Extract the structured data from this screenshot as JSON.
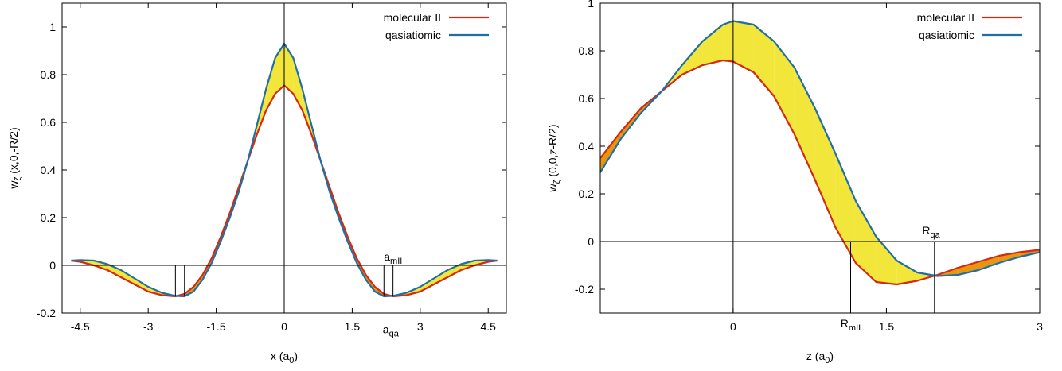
{
  "colors": {
    "molecular": "#d42a12",
    "quasiatomic": "#1f6fa6",
    "fill_yellow": "#f2e63b",
    "fill_orange": "#e8960f"
  },
  "chart_data": [
    {
      "type": "line",
      "xlabel": {
        "base": "x (a",
        "sub": "0",
        "end": ")"
      },
      "ylabel": {
        "base": "w",
        "sub": "ζ",
        "end": " (x,0,-R/2)"
      },
      "xlim": [
        -4.9,
        4.9
      ],
      "ylim": [
        -0.2,
        1.1
      ],
      "xticks": [
        -4.5,
        -3,
        -1.5,
        0,
        1.5,
        3,
        4.5
      ],
      "xtick_labels": [
        "-4.5",
        "-3",
        "-1.5",
        "0",
        "1.5",
        "3",
        "4.5"
      ],
      "yticks": [
        -0.2,
        0,
        0.2,
        0.4,
        0.6,
        0.8,
        1
      ],
      "ytick_labels": [
        "-0.2",
        "0",
        "0.2",
        "0.4",
        "0.6",
        "0.8",
        "1"
      ],
      "legend_position": "top-right",
      "series": [
        {
          "name": "molecular II",
          "key": "molecular",
          "x": [
            -4.7,
            -4.5,
            -4.2,
            -3.9,
            -3.6,
            -3.3,
            -3.0,
            -2.7,
            -2.4,
            -2.2,
            -2.0,
            -1.8,
            -1.6,
            -1.4,
            -1.2,
            -1.0,
            -0.8,
            -0.6,
            -0.4,
            -0.2,
            0,
            0.2,
            0.4,
            0.6,
            0.8,
            1.0,
            1.2,
            1.4,
            1.6,
            1.8,
            2.0,
            2.2,
            2.4,
            2.7,
            3.0,
            3.3,
            3.6,
            3.9,
            4.2,
            4.5,
            4.7
          ],
          "y": [
            0.02,
            0.015,
            0.0,
            -0.02,
            -0.05,
            -0.08,
            -0.11,
            -0.125,
            -0.13,
            -0.12,
            -0.09,
            -0.04,
            0.03,
            0.12,
            0.22,
            0.33,
            0.44,
            0.55,
            0.65,
            0.72,
            0.755,
            0.72,
            0.65,
            0.55,
            0.44,
            0.33,
            0.22,
            0.12,
            0.03,
            -0.04,
            -0.09,
            -0.12,
            -0.13,
            -0.125,
            -0.11,
            -0.08,
            -0.05,
            -0.02,
            0.0,
            0.015,
            0.02
          ]
        },
        {
          "name": "qasiatiomic",
          "key": "quasiatomic",
          "x": [
            -4.7,
            -4.5,
            -4.2,
            -3.9,
            -3.6,
            -3.3,
            -3.0,
            -2.7,
            -2.4,
            -2.2,
            -2.0,
            -1.8,
            -1.6,
            -1.4,
            -1.2,
            -1.0,
            -0.8,
            -0.6,
            -0.4,
            -0.2,
            0,
            0.2,
            0.4,
            0.6,
            0.8,
            1.0,
            1.2,
            1.4,
            1.6,
            1.8,
            2.0,
            2.2,
            2.4,
            2.7,
            3.0,
            3.3,
            3.6,
            3.9,
            4.2,
            4.5,
            4.7
          ],
          "y": [
            0.02,
            0.022,
            0.02,
            0.005,
            -0.02,
            -0.055,
            -0.09,
            -0.115,
            -0.128,
            -0.13,
            -0.11,
            -0.06,
            0.01,
            0.1,
            0.2,
            0.31,
            0.44,
            0.59,
            0.74,
            0.87,
            0.93,
            0.87,
            0.74,
            0.59,
            0.44,
            0.31,
            0.2,
            0.1,
            0.01,
            -0.06,
            -0.11,
            -0.13,
            -0.128,
            -0.115,
            -0.09,
            -0.055,
            -0.02,
            0.005,
            0.02,
            0.022,
            0.02
          ]
        }
      ],
      "vlines": [
        {
          "x": -2.4,
          "y0": -0.13,
          "y1": 0
        },
        {
          "x": -2.2,
          "y0": -0.13,
          "y1": 0
        },
        {
          "x": 2.2,
          "y0": -0.13,
          "y1": 0
        },
        {
          "x": 2.4,
          "y0": -0.13,
          "y1": 0
        }
      ],
      "annotations": [
        {
          "base": "a",
          "sub": "mII",
          "x": 2.2,
          "y": 0.02,
          "anchor": "start"
        },
        {
          "base": "a",
          "sub": "qa",
          "x": 2.35,
          "y": -0.285,
          "anchor": "middle"
        }
      ]
    },
    {
      "type": "line",
      "xlabel": {
        "base": "z (a",
        "sub": "0",
        "end": ")"
      },
      "ylabel": {
        "base": "w",
        "sub": "ζ",
        "end": " (0,0,z-R/2)"
      },
      "xlim": [
        -1.3,
        3.0
      ],
      "ylim": [
        -0.3,
        1.0
      ],
      "xticks": [
        0,
        1.5,
        3
      ],
      "xtick_labels": [
        "0",
        "1.5",
        "3"
      ],
      "yticks": [
        -0.2,
        0,
        0.2,
        0.4,
        0.6,
        0.8,
        1
      ],
      "ytick_labels": [
        "-0.2",
        "0",
        "0.2",
        "0.4",
        "0.6",
        "0.8",
        "1"
      ],
      "legend_position": "top-right",
      "series": [
        {
          "name": "molecular II",
          "key": "molecular",
          "x": [
            -1.3,
            -1.1,
            -0.9,
            -0.7,
            -0.5,
            -0.3,
            -0.1,
            0,
            0.2,
            0.4,
            0.6,
            0.8,
            1.0,
            1.2,
            1.4,
            1.6,
            1.8,
            2.0,
            2.2,
            2.4,
            2.6,
            2.8,
            3.0
          ],
          "y": [
            0.35,
            0.46,
            0.56,
            0.63,
            0.7,
            0.74,
            0.76,
            0.755,
            0.71,
            0.61,
            0.45,
            0.26,
            0.06,
            -0.09,
            -0.17,
            -0.18,
            -0.165,
            -0.14,
            -0.11,
            -0.085,
            -0.06,
            -0.045,
            -0.035
          ]
        },
        {
          "name": "qasiatiomic",
          "key": "quasiatomic",
          "x": [
            -1.3,
            -1.1,
            -0.9,
            -0.7,
            -0.5,
            -0.3,
            -0.1,
            0,
            0.2,
            0.4,
            0.6,
            0.8,
            1.0,
            1.2,
            1.4,
            1.6,
            1.8,
            2.0,
            2.2,
            2.4,
            2.6,
            2.8,
            3.0
          ],
          "y": [
            0.29,
            0.43,
            0.54,
            0.63,
            0.74,
            0.84,
            0.91,
            0.925,
            0.91,
            0.84,
            0.73,
            0.56,
            0.37,
            0.17,
            0.02,
            -0.08,
            -0.13,
            -0.145,
            -0.14,
            -0.12,
            -0.09,
            -0.065,
            -0.045
          ]
        }
      ],
      "vlines": [
        {
          "x": 1.15,
          "y0": -0.3,
          "y1": 0
        },
        {
          "x": 1.97,
          "y0": -0.3,
          "y1": 0
        }
      ],
      "annotations": [
        {
          "base": "R",
          "sub": "qa",
          "x": 1.85,
          "y": 0.03,
          "anchor": "start"
        },
        {
          "base": "R",
          "sub": "mII",
          "x": 1.15,
          "y": -0.36,
          "anchor": "middle"
        }
      ]
    }
  ]
}
